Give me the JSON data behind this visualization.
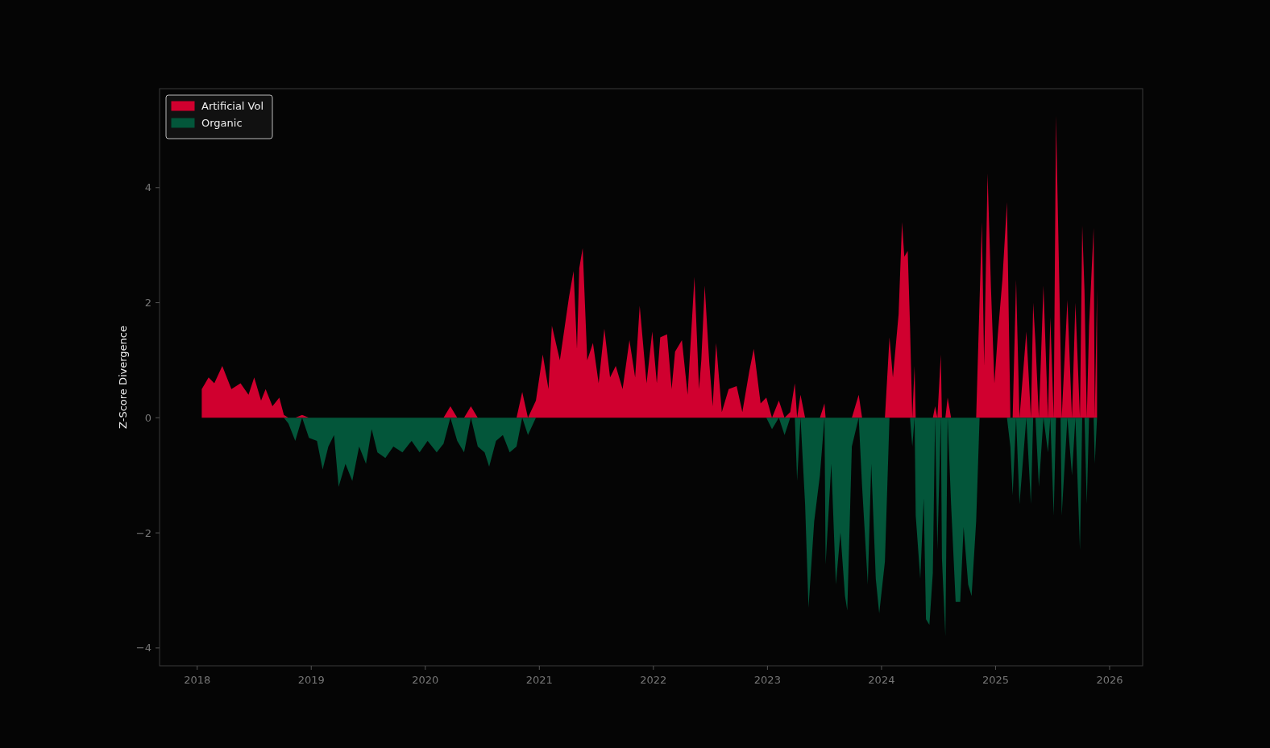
{
  "chart_data": {
    "type": "area",
    "ylabel": "Z-Score Divergence",
    "legend": "top left",
    "grid": false,
    "xlim": [
      2017.67,
      2026.29
    ],
    "xticks": [
      2018,
      2019,
      2020,
      2021,
      2022,
      2023,
      2024,
      2025,
      2026
    ],
    "ylim": [
      -4.31,
      5.72
    ],
    "yticks": [
      {
        "value": -4,
        "label": "−4"
      },
      {
        "value": -2,
        "label": "−2"
      },
      0,
      2,
      4
    ],
    "x": [
      2018.04,
      2018.1,
      2018.15,
      2018.22,
      2018.3,
      2018.38,
      2018.45,
      2018.5,
      2018.56,
      2018.6,
      2018.66,
      2018.72,
      2018.76,
      2018.8,
      2018.86,
      2018.92,
      2018.98,
      2019.05,
      2019.1,
      2019.15,
      2019.2,
      2019.24,
      2019.3,
      2019.36,
      2019.42,
      2019.48,
      2019.53,
      2019.58,
      2019.65,
      2019.72,
      2019.8,
      2019.88,
      2019.95,
      2020.02,
      2020.1,
      2020.16,
      2020.22,
      2020.28,
      2020.34,
      2020.4,
      2020.46,
      2020.52,
      2020.56,
      2020.62,
      2020.68,
      2020.74,
      2020.8,
      2020.85,
      2020.9,
      2020.97,
      2021.03,
      2021.08,
      2021.11,
      2021.18,
      2021.26,
      2021.3,
      2021.33,
      2021.35,
      2021.38,
      2021.42,
      2021.47,
      2021.52,
      2021.57,
      2021.62,
      2021.67,
      2021.73,
      2021.79,
      2021.84,
      2021.88,
      2021.94,
      2021.99,
      2022.03,
      2022.06,
      2022.12,
      2022.16,
      2022.19,
      2022.25,
      2022.3,
      2022.36,
      2022.4,
      2022.42,
      2022.45,
      2022.49,
      2022.52,
      2022.55,
      2022.6,
      2022.66,
      2022.73,
      2022.78,
      2022.84,
      2022.88,
      2022.94,
      2022.99,
      2023.04,
      2023.1,
      2023.15,
      2023.2,
      2023.24,
      2023.26,
      2023.29,
      2023.33,
      2023.36,
      2023.41,
      2023.46,
      2023.5,
      2023.51,
      2023.56,
      2023.6,
      2023.64,
      2023.68,
      2023.7,
      2023.74,
      2023.8,
      2023.83,
      2023.88,
      2023.91,
      2023.95,
      2023.98,
      2024.03,
      2024.07,
      2024.1,
      2024.15,
      2024.18,
      2024.2,
      2024.23,
      2024.25,
      2024.27,
      2024.29,
      2024.3,
      2024.34,
      2024.37,
      2024.39,
      2024.42,
      2024.45,
      2024.47,
      2024.49,
      2024.52,
      2024.53,
      2024.56,
      2024.58,
      2024.61,
      2024.65,
      2024.69,
      2024.72,
      2024.76,
      2024.79,
      2024.83,
      2024.86,
      2024.88,
      2024.9,
      2024.93,
      2024.96,
      2024.99,
      2025.02,
      2025.06,
      2025.1,
      2025.13,
      2025.15,
      2025.18,
      2025.21,
      2025.27,
      2025.31,
      2025.33,
      2025.35,
      2025.38,
      2025.42,
      2025.46,
      2025.48,
      2025.51,
      2025.53,
      2025.57,
      2025.58,
      2025.63,
      2025.67,
      2025.7,
      2025.74,
      2025.76,
      2025.78,
      2025.8,
      2025.82,
      2025.86,
      2025.87,
      2025.89
    ],
    "series": [
      {
        "name": "Artificial Vol",
        "color": "#d0002f",
        "values": [
          0.5,
          0.7,
          0.6,
          0.9,
          0.5,
          0.6,
          0.4,
          0.7,
          0.3,
          0.5,
          0.2,
          0.35,
          0.05,
          0,
          0,
          0.05,
          0,
          0,
          0,
          0,
          0,
          0,
          0,
          0,
          0,
          0,
          0,
          0,
          0,
          0,
          0,
          0,
          0,
          0,
          0,
          0,
          0.2,
          0,
          0,
          0.2,
          0,
          0,
          0,
          0,
          0,
          0,
          0,
          0.45,
          0,
          0.3,
          1.1,
          0.5,
          1.6,
          1.0,
          2.1,
          2.55,
          1.2,
          2.6,
          2.95,
          1.0,
          1.3,
          0.6,
          1.55,
          0.7,
          0.9,
          0.5,
          1.35,
          0.7,
          1.95,
          0.6,
          1.5,
          0.6,
          1.4,
          1.45,
          0.5,
          1.15,
          1.35,
          0.4,
          2.45,
          0.5,
          1.0,
          2.3,
          0.95,
          0.2,
          1.3,
          0.1,
          0.5,
          0.55,
          0.1,
          0.8,
          1.2,
          0.25,
          0.35,
          0,
          0.3,
          0,
          0.1,
          0.6,
          0,
          0.4,
          0,
          0,
          0,
          0,
          0.25,
          0,
          0,
          0,
          0,
          0,
          0,
          0,
          0.4,
          0,
          0,
          0,
          0,
          0,
          0,
          1.4,
          0.7,
          1.8,
          3.4,
          2.8,
          2.9,
          1.6,
          0,
          0.9,
          0,
          0,
          0,
          0,
          0,
          0,
          0.2,
          0,
          1.1,
          0,
          0,
          0.35,
          0,
          0,
          0,
          0,
          0,
          0,
          0,
          2.05,
          3.4,
          0.9,
          4.25,
          2.25,
          0.6,
          1.45,
          2.4,
          3.75,
          0,
          0,
          2.4,
          0,
          1.5,
          0,
          2.0,
          1.3,
          0,
          2.3,
          0,
          1.75,
          0,
          5.25,
          1.2,
          0,
          2.05,
          0,
          2.0,
          0,
          3.35,
          2.2,
          0,
          1.6,
          3.3,
          0,
          2.25
        ]
      },
      {
        "name": "Organic",
        "color": "#03563a",
        "values": [
          0,
          0,
          0,
          0,
          0,
          0,
          0,
          0,
          0,
          0,
          0,
          0,
          0,
          -0.1,
          -0.4,
          0,
          -0.35,
          -0.4,
          -0.9,
          -0.5,
          -0.3,
          -1.2,
          -0.8,
          -1.1,
          -0.5,
          -0.8,
          -0.2,
          -0.6,
          -0.7,
          -0.5,
          -0.6,
          -0.4,
          -0.6,
          -0.4,
          -0.6,
          -0.45,
          0,
          -0.4,
          -0.6,
          0,
          -0.5,
          -0.6,
          -0.85,
          -0.4,
          -0.3,
          -0.6,
          -0.5,
          0,
          -0.3,
          0,
          0,
          0,
          0,
          0,
          0,
          0,
          0,
          0,
          0,
          0,
          0,
          0,
          0,
          0,
          0,
          0,
          0,
          0,
          0,
          0,
          0,
          0,
          0,
          0,
          0,
          0,
          0,
          0,
          0,
          0,
          0,
          0,
          0,
          0,
          0,
          0,
          0,
          0,
          0,
          0,
          0,
          0,
          0,
          -0.2,
          0,
          -0.3,
          0,
          0,
          -1.1,
          0,
          -1.5,
          -3.3,
          -1.8,
          -1.0,
          0,
          -2.55,
          -0.8,
          -2.9,
          -2.0,
          -3.1,
          -3.35,
          -0.5,
          0,
          -1.2,
          -2.9,
          -0.8,
          -2.8,
          -3.4,
          -2.5,
          0,
          0,
          0,
          0,
          0,
          0,
          0,
          -0.5,
          0,
          -1.7,
          -2.8,
          -1.4,
          -3.5,
          -3.6,
          -2.7,
          0,
          -2.3,
          0,
          -2.45,
          -3.8,
          0,
          -1.5,
          -3.2,
          -3.2,
          -1.9,
          -2.9,
          -3.1,
          -1.8,
          0,
          0,
          0,
          0,
          0,
          0,
          0,
          0,
          0,
          -0.5,
          -1.35,
          0,
          -1.5,
          0,
          -1.5,
          0,
          0,
          -1.2,
          0,
          -0.6,
          0,
          -1.7,
          0,
          0,
          -1.7,
          0,
          -1.0,
          0,
          -2.3,
          0,
          0,
          -1.5,
          0,
          0,
          -0.8,
          0
        ]
      }
    ]
  }
}
